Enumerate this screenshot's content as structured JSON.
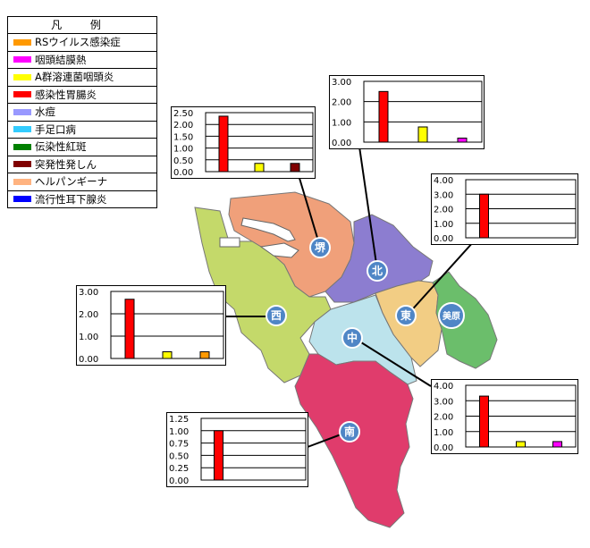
{
  "legend": {
    "title": "凡 例",
    "items": [
      {
        "label": "RSウイルス感染症",
        "color": "#FF9900"
      },
      {
        "label": "咽頭結膜熱",
        "color": "#FF00FF"
      },
      {
        "label": "A群溶連菌咽頭炎",
        "color": "#FFFF00"
      },
      {
        "label": "感染性胃腸炎",
        "color": "#FF0000"
      },
      {
        "label": "水痘",
        "color": "#9999FF"
      },
      {
        "label": "手足口病",
        "color": "#33CCFF"
      },
      {
        "label": "伝染性紅斑",
        "color": "#008000"
      },
      {
        "label": "突発性発しん",
        "color": "#800000"
      },
      {
        "label": "ヘルパンギーナ",
        "color": "#FFB380"
      },
      {
        "label": "流行性耳下腺炎",
        "color": "#0000FF"
      }
    ]
  },
  "wards": [
    {
      "id": "sakai",
      "label": "堺",
      "color": "#F0A07A"
    },
    {
      "id": "kita",
      "label": "北",
      "color": "#8C7DD0"
    },
    {
      "id": "nishi",
      "label": "西",
      "color": "#C4D96A"
    },
    {
      "id": "naka",
      "label": "中",
      "color": "#BCE3EC"
    },
    {
      "id": "higashi",
      "label": "東",
      "color": "#F2CD84"
    },
    {
      "id": "mihara",
      "label": "美原",
      "color": "#6BBE6B"
    },
    {
      "id": "minami",
      "label": "南",
      "color": "#E03C6C"
    }
  ],
  "chart_data": [
    {
      "type": "bar",
      "ward": "堺",
      "yticks": [
        "2.50",
        "2.00",
        "1.50",
        "1.00",
        "0.50",
        "0.00"
      ],
      "ylim": [
        0,
        2.5
      ],
      "series": [
        {
          "disease": "感染性胃腸炎",
          "value": 2.35,
          "color": "#FF0000"
        },
        {
          "disease": "A群溶連菌咽頭炎",
          "value": 0.35,
          "color": "#FFFF00"
        },
        {
          "disease": "突発性発しん",
          "value": 0.35,
          "color": "#800000"
        }
      ]
    },
    {
      "type": "bar",
      "ward": "北",
      "yticks": [
        "3.00",
        "2.00",
        "1.00",
        "0.00"
      ],
      "ylim": [
        0,
        3
      ],
      "series": [
        {
          "disease": "感染性胃腸炎",
          "value": 2.5,
          "color": "#FF0000"
        },
        {
          "disease": "A群溶連菌咽頭炎",
          "value": 0.75,
          "color": "#FFFF00"
        },
        {
          "disease": "咽頭結膜熱",
          "value": 0.2,
          "color": "#FF00FF"
        }
      ]
    },
    {
      "type": "bar",
      "ward": "東",
      "yticks": [
        "4.00",
        "3.00",
        "2.00",
        "1.00",
        "0.00"
      ],
      "ylim": [
        0,
        4
      ],
      "series": [
        {
          "disease": "感染性胃腸炎",
          "value": 3.0,
          "color": "#FF0000"
        }
      ]
    },
    {
      "type": "bar",
      "ward": "西",
      "yticks": [
        "3.00",
        "2.00",
        "1.00",
        "0.00"
      ],
      "ylim": [
        0,
        3
      ],
      "series": [
        {
          "disease": "感染性胃腸炎",
          "value": 2.65,
          "color": "#FF0000"
        },
        {
          "disease": "A群溶連菌咽頭炎",
          "value": 0.3,
          "color": "#FFFF00"
        },
        {
          "disease": "RSウイルス感染症",
          "value": 0.3,
          "color": "#FF9900"
        }
      ]
    },
    {
      "type": "bar",
      "ward": "中",
      "yticks": [
        "4.00",
        "3.00",
        "2.00",
        "1.00",
        "0.00"
      ],
      "ylim": [
        0,
        4
      ],
      "series": [
        {
          "disease": "感染性胃腸炎",
          "value": 3.3,
          "color": "#FF0000"
        },
        {
          "disease": "A群溶連菌咽頭炎",
          "value": 0.35,
          "color": "#FFFF00"
        },
        {
          "disease": "咽頭結膜熱",
          "value": 0.35,
          "color": "#FF00FF"
        }
      ]
    },
    {
      "type": "bar",
      "ward": "南",
      "yticks": [
        "1.25",
        "1.00",
        "0.75",
        "0.50",
        "0.25",
        "0.00"
      ],
      "ylim": [
        0,
        1.25
      ],
      "series": [
        {
          "disease": "感染性胃腸炎",
          "value": 1.0,
          "color": "#FF0000"
        }
      ]
    }
  ]
}
